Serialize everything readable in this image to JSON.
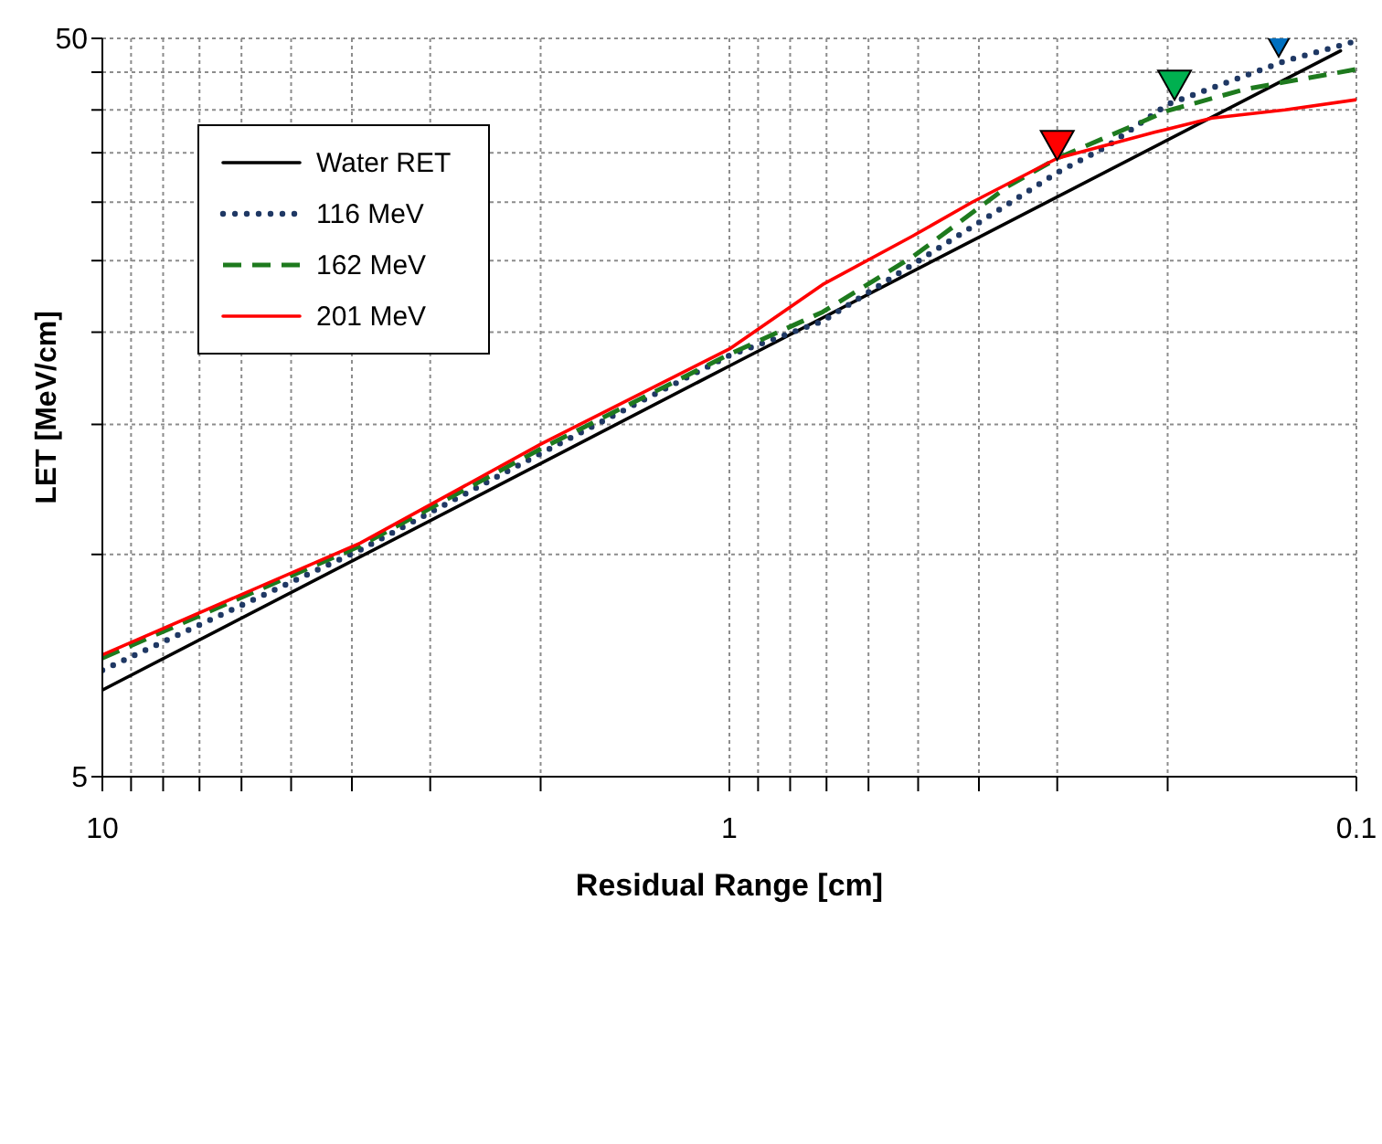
{
  "chart_data": {
    "type": "line",
    "xlabel": "Residual Range [cm]",
    "ylabel": "LET [MeV/cm]",
    "log": "xy",
    "grid": true,
    "legend": "top left",
    "xlim": [
      10,
      0.1
    ],
    "xticks": [
      10,
      {
        "value": 9,
        "label": null
      },
      {
        "value": 8,
        "label": null
      },
      {
        "value": 7,
        "label": null
      },
      {
        "value": 6,
        "label": null
      },
      {
        "value": 5,
        "label": null
      },
      {
        "value": 4,
        "label": null
      },
      {
        "value": 3,
        "label": null
      },
      {
        "value": 2,
        "label": null
      },
      1,
      {
        "value": 0.9,
        "label": null
      },
      {
        "value": 0.8,
        "label": null
      },
      {
        "value": 0.7,
        "label": null
      },
      {
        "value": 0.6,
        "label": null
      },
      {
        "value": 0.5,
        "label": null
      },
      {
        "value": 0.4,
        "label": null
      },
      {
        "value": 0.3,
        "label": null
      },
      {
        "value": 0.2,
        "label": null
      },
      0.1
    ],
    "ylim": [
      5,
      50
    ],
    "yticks": [
      5,
      {
        "value": 10,
        "label": null
      },
      {
        "value": 15,
        "label": null
      },
      {
        "value": 20,
        "label": null
      },
      {
        "value": 25,
        "label": null
      },
      {
        "value": 30,
        "label": null
      },
      {
        "value": 35,
        "label": null
      },
      {
        "value": 40,
        "label": null
      },
      {
        "value": 45,
        "label": null
      },
      50
    ],
    "series": [
      {
        "name": "Water RET",
        "color": "#000000",
        "line_style": "solid",
        "x": [
          10,
          1,
          0.106
        ],
        "values": [
          6.55,
          18.0,
          48.1
        ]
      },
      {
        "name": "116 MeV",
        "color": "#1f3864",
        "line_style": "dotted",
        "x": [
          10,
          3.88,
          2,
          1,
          0.71,
          0.51,
          0.36,
          0.3,
          0.25,
          0.2,
          0.13,
          0.1
        ],
        "values": [
          6.97,
          10.14,
          13.7,
          18.6,
          20.7,
          24.7,
          29.8,
          32.9,
          35.7,
          40.7,
          46.6,
          49.6
        ]
      },
      {
        "name": "162 MeV",
        "color": "#1e7a1e",
        "line_style": "dashed",
        "x": [
          10,
          3.88,
          2,
          1,
          0.71,
          0.51,
          0.36,
          0.3,
          0.2,
          0.15,
          0.1
        ],
        "values": [
          7.24,
          10.27,
          13.9,
          18.67,
          21.3,
          25.3,
          31.5,
          34.4,
          39.9,
          42.7,
          45.4
        ]
      },
      {
        "name": "201 MeV",
        "color": "#ff0000",
        "line_style": "solid",
        "x": [
          10,
          3.88,
          2,
          1,
          0.71,
          0.51,
          0.41,
          0.3,
          0.21,
          0.17,
          0.13,
          0.1
        ],
        "values": [
          7.31,
          10.36,
          14.1,
          18.98,
          23.2,
          27.0,
          30.0,
          34.4,
          37.3,
          39.0,
          40.0,
          41.3
        ]
      },
      {
        "type": "scatter",
        "marker": "triangle",
        "colors": [
          "#ff0000",
          "#00b050",
          "#0070c0"
        ],
        "x": [
          0.3,
          0.195,
          0.133
        ],
        "values": [
          36.2,
          43.7,
          50
        ]
      }
    ]
  }
}
